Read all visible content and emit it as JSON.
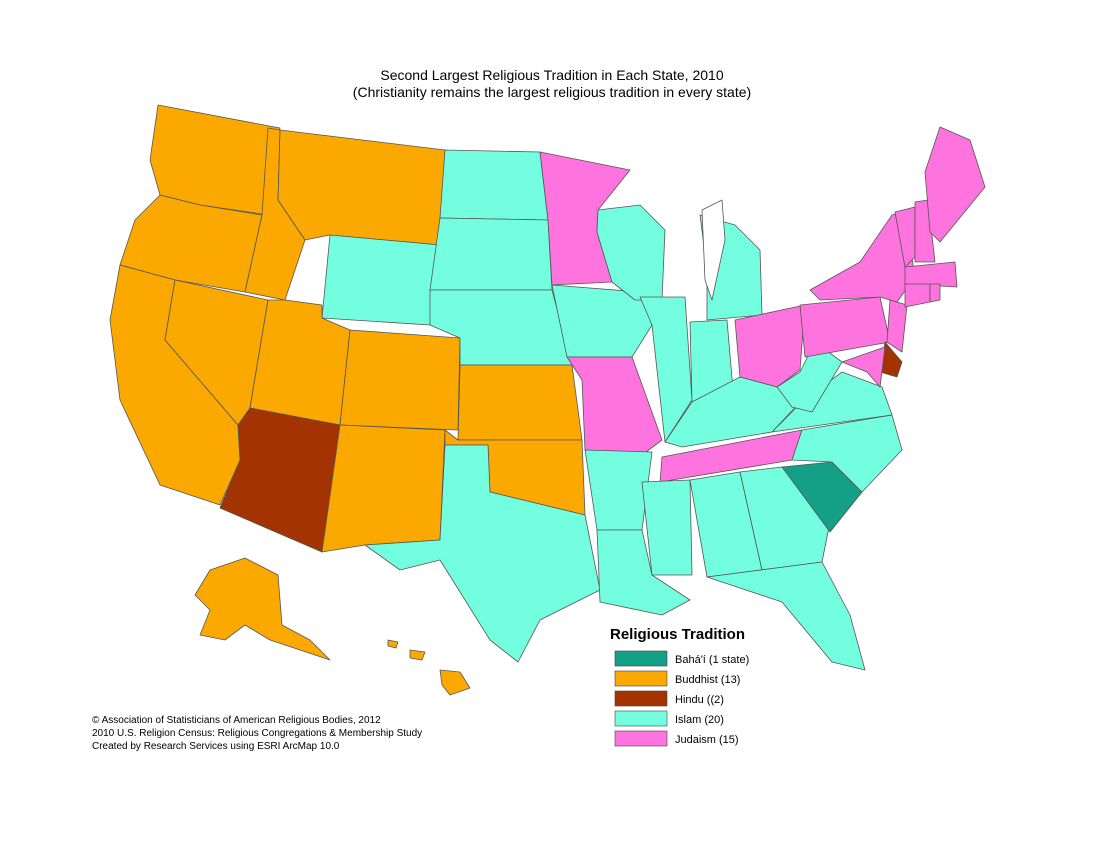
{
  "header": {
    "title": "Second Largest Religious Tradition in Each State, 2010",
    "subtitle": "(Christianity remains the largest religious tradition in every state)"
  },
  "legend": {
    "title": "Religious Tradition",
    "items": [
      {
        "label": "Bahá'í (1 state)",
        "color": "#13a086"
      },
      {
        "label": "Buddhist (13)",
        "color": "#fba900"
      },
      {
        "label": "Hindu ((2)",
        "color": "#a33300"
      },
      {
        "label": "Islam (20)",
        "color": "#73ffdf"
      },
      {
        "label": "Judaism (15)",
        "color": "#ff73df"
      }
    ]
  },
  "credits": [
    "© Association of Statisticians of American Religious Bodies, 2012",
    "2010 U.S. Religion Census: Religious Congregations & Membership Study",
    "Created by Research Services using ESRI ArcMap 10.0"
  ]
}
